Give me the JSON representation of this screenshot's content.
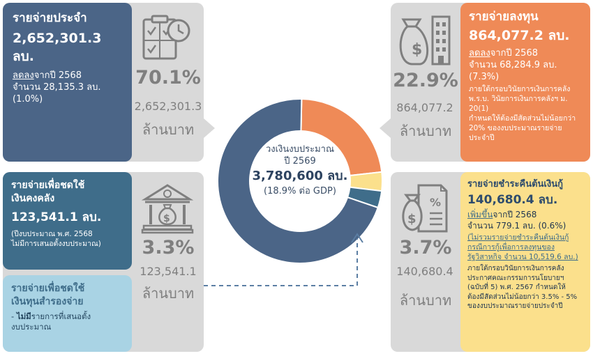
{
  "donut": {
    "label_line1": "วงเงินงบประมาณ",
    "label_line2": "ปี 2569",
    "total": "3,780,600 ลบ.",
    "gdp": "(18.9% ต่อ GDP)"
  },
  "chart_data": {
    "type": "pie",
    "categories": [
      "รายจ่ายประจำ",
      "รายจ่ายลงทุน",
      "รายจ่ายชำระคืนต้นเงินกู้",
      "รายจ่ายเพื่อชดใช้เงินคงคลัง"
    ],
    "values": [
      70.1,
      22.9,
      3.7,
      3.3
    ],
    "amounts_million_baht": [
      2652301.3,
      864077.2,
      140680.4,
      123541.1
    ],
    "colors": [
      "#4b6587",
      "#ef8a57",
      "#fbe08c",
      "#3f6d8a"
    ]
  },
  "recurrent": {
    "title": "รายจ่ายประจำ",
    "amount": "2,652,301.3 ลบ.",
    "change_word": "ลดลง",
    "change_rest": "จากปี 2568",
    "change_amount": "จำนวน 28,135.3 ลบ.",
    "change_pct": "(1.0%)",
    "pct": "70.1%",
    "value": "2,652,301.3",
    "unit": "ล้านบาท",
    "icon": "checklist-clock-icon"
  },
  "investment": {
    "title": "รายจ่ายลงทุน",
    "amount": "864,077.2 ลบ.",
    "change_word": "ลดลง",
    "change_rest": "จากปี 2568",
    "change_amount": "จำนวน 68,284.9 ลบ.",
    "change_pct": "(7.3%)",
    "note1": "ภายใต้กรอบวินัยการเงินการคลัง",
    "note2": "พ.ร.บ. วินัยการเงินการคลังฯ ม. 20(1)",
    "note3": "กำหนดให้ต้องมีสัดส่วนไม่น้อยกว่า",
    "note4": "20% ของงบประมาณรายจ่ายประจำปี",
    "pct": "22.9%",
    "value": "864,077.2",
    "unit": "ล้านบาท",
    "icon": "money-bag-building-icon"
  },
  "treasury": {
    "title1": "รายจ่ายเพื่อชดใช้",
    "title2": "เงินคงคลัง",
    "amount": "123,541.1 ลบ.",
    "note1": "(ปีงบประมาณ พ.ศ. 2568",
    "note2": "ไม่มีการเสนอตั้งงบประมาณ)",
    "pct": "3.3%",
    "value": "123,541.1",
    "unit": "ล้านบาท",
    "icon": "bank-money-bag-icon"
  },
  "reserve": {
    "title1": "รายจ่ายเพื่อชดใช้",
    "title2": "เงินทุนสำรองจ่าย",
    "note_dash": "- ",
    "note_bold": "ไม่มี",
    "note_rest": "รายการที่เสนอตั้ง",
    "note2": "งบประมาณ"
  },
  "debt": {
    "title": "รายจ่ายชำระคืนต้นเงินกู้",
    "amount": "140,680.4 ลบ.",
    "change_word": "เพิ่มขึ้น",
    "change_rest": "จากปี 2568",
    "change_amount": "จำนวน 779.1 ลบ. (0.6%)",
    "excl1": "(ไม่รวมรายจ่ายชำระคืนต้นเงินกู้",
    "excl2": "กรณีการกู้เพื่อการลงทุนของ",
    "excl3": "รัฐวิสาหกิจ จำนวน 10,519.6 ลบ.)",
    "note1": "ภายใต้กรอบวินัยการเงินการคลัง",
    "note2": "ประกาศคณะกรรมการนโยบายฯ",
    "note3": "(ฉบับที่ 5) พ.ศ. 2567 กำหนดให้",
    "note4": "ต้องมีสัดส่วนไม่น้อยกว่า 3.5% - 5%",
    "note5": "ของงบประมาณรายจ่ายประจำปี",
    "pct": "3.7%",
    "value": "140,680.4",
    "unit": "ล้านบาท",
    "icon": "dollar-document-icon"
  }
}
